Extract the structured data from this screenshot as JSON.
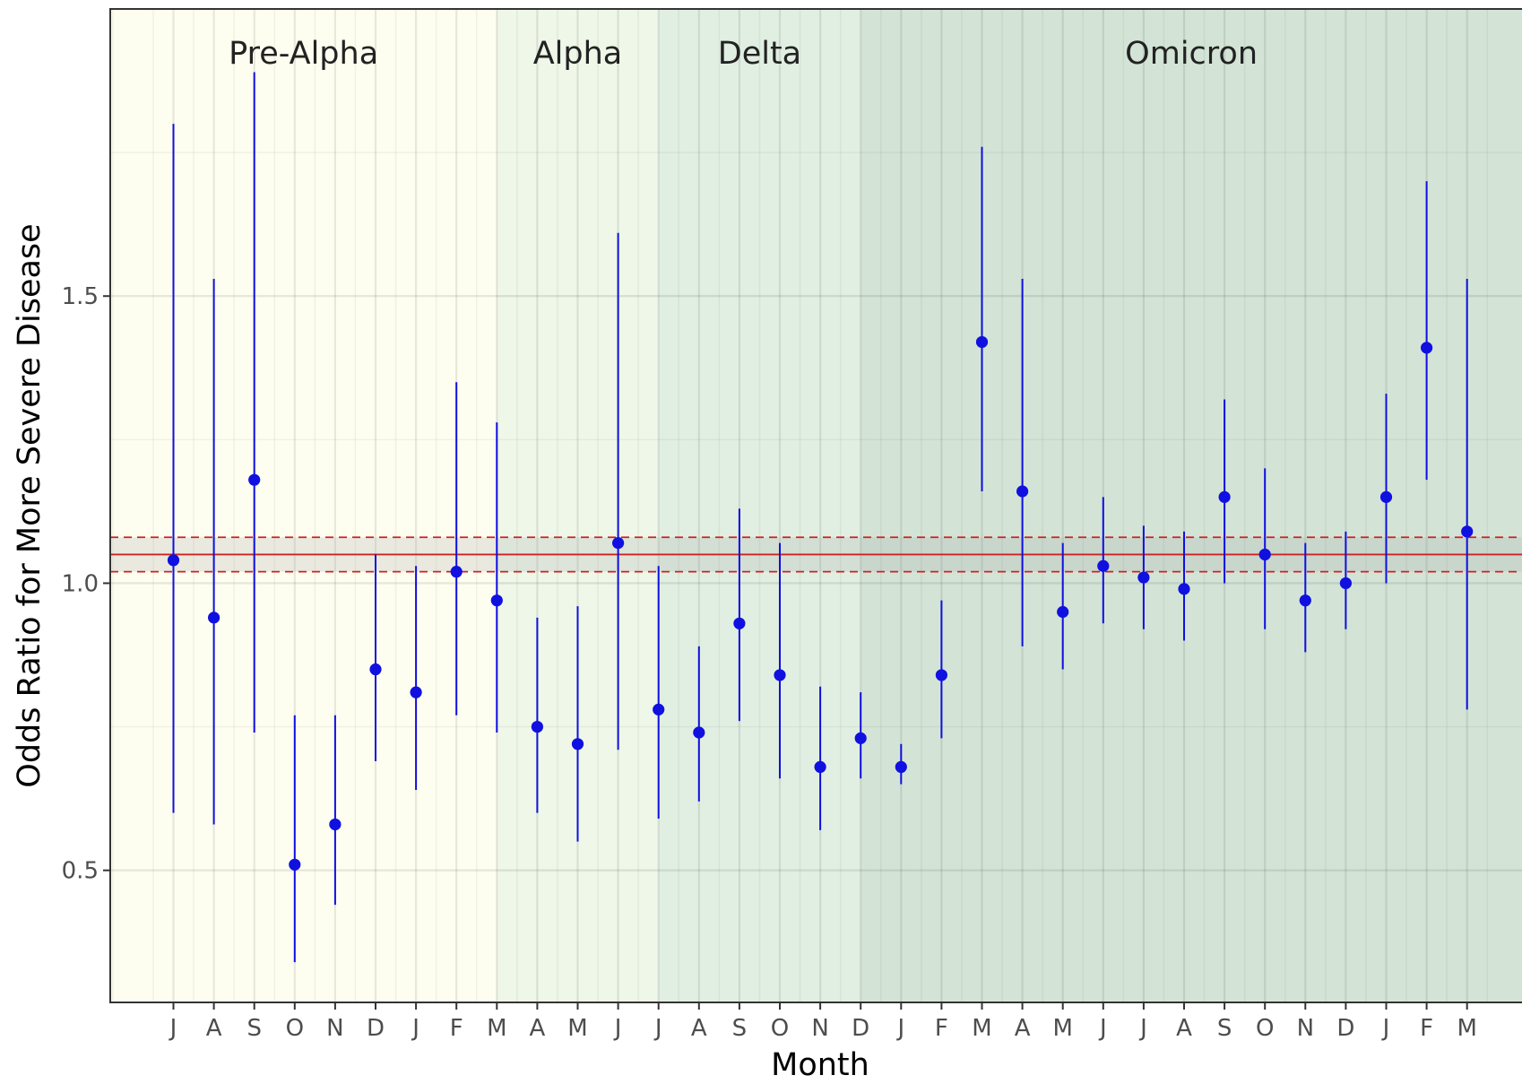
{
  "chart_data": {
    "type": "scatter",
    "subtype": "point-range",
    "title": "",
    "xlabel": "Month",
    "ylabel": "Odds Ratio for More Severe Disease",
    "ylim": [
      0.27,
      2.0
    ],
    "yticks": [
      {
        "value": 0.5,
        "label": "0.5"
      },
      {
        "value": 1.0,
        "label": "1.0"
      },
      {
        "value": 1.5,
        "label": "1.5"
      }
    ],
    "grid": true,
    "x": [
      "J",
      "A",
      "S",
      "O",
      "N",
      "D",
      "J",
      "F",
      "M",
      "A",
      "M",
      "J",
      "J",
      "A",
      "S",
      "O",
      "N",
      "D",
      "J",
      "F",
      "M",
      "A",
      "M",
      "J",
      "J",
      "A",
      "S",
      "O",
      "N",
      "D",
      "J",
      "F",
      "M"
    ],
    "series": [
      {
        "color": "#1010e0",
        "points": [
          {
            "x": "J",
            "y": 1.04,
            "lower": 0.6,
            "upper": 1.8
          },
          {
            "x": "A",
            "y": 0.94,
            "lower": 0.58,
            "upper": 1.53
          },
          {
            "x": "S",
            "y": 1.18,
            "lower": 0.74,
            "upper": 1.89
          },
          {
            "x": "O",
            "y": 0.51,
            "lower": 0.34,
            "upper": 0.77
          },
          {
            "x": "N",
            "y": 0.58,
            "lower": 0.44,
            "upper": 0.77
          },
          {
            "x": "D",
            "y": 0.85,
            "lower": 0.69,
            "upper": 1.05
          },
          {
            "x": "J",
            "y": 0.81,
            "lower": 0.64,
            "upper": 1.03
          },
          {
            "x": "F",
            "y": 1.02,
            "lower": 0.77,
            "upper": 1.35
          },
          {
            "x": "M",
            "y": 0.97,
            "lower": 0.74,
            "upper": 1.28
          },
          {
            "x": "A",
            "y": 0.75,
            "lower": 0.6,
            "upper": 0.94
          },
          {
            "x": "M",
            "y": 0.72,
            "lower": 0.55,
            "upper": 0.96
          },
          {
            "x": "J",
            "y": 1.07,
            "lower": 0.71,
            "upper": 1.61
          },
          {
            "x": "J",
            "y": 0.78,
            "lower": 0.59,
            "upper": 1.03
          },
          {
            "x": "A",
            "y": 0.74,
            "lower": 0.62,
            "upper": 0.89
          },
          {
            "x": "S",
            "y": 0.93,
            "lower": 0.76,
            "upper": 1.13
          },
          {
            "x": "O",
            "y": 0.84,
            "lower": 0.66,
            "upper": 1.07
          },
          {
            "x": "N",
            "y": 0.68,
            "lower": 0.57,
            "upper": 0.82
          },
          {
            "x": "D",
            "y": 0.73,
            "lower": 0.66,
            "upper": 0.81
          },
          {
            "x": "J",
            "y": 0.68,
            "lower": 0.65,
            "upper": 0.72
          },
          {
            "x": "F",
            "y": 0.84,
            "lower": 0.73,
            "upper": 0.97
          },
          {
            "x": "M",
            "y": 1.42,
            "lower": 1.16,
            "upper": 1.76
          },
          {
            "x": "A",
            "y": 1.16,
            "lower": 0.89,
            "upper": 1.53
          },
          {
            "x": "M",
            "y": 0.95,
            "lower": 0.85,
            "upper": 1.07
          },
          {
            "x": "J",
            "y": 1.03,
            "lower": 0.93,
            "upper": 1.15
          },
          {
            "x": "J",
            "y": 1.01,
            "lower": 0.92,
            "upper": 1.1
          },
          {
            "x": "A",
            "y": 0.99,
            "lower": 0.9,
            "upper": 1.09
          },
          {
            "x": "S",
            "y": 1.15,
            "lower": 1.0,
            "upper": 1.32
          },
          {
            "x": "O",
            "y": 1.05,
            "lower": 0.92,
            "upper": 1.2
          },
          {
            "x": "N",
            "y": 0.97,
            "lower": 0.88,
            "upper": 1.07
          },
          {
            "x": "D",
            "y": 1.0,
            "lower": 0.92,
            "upper": 1.09
          },
          {
            "x": "J",
            "y": 1.15,
            "lower": 1.0,
            "upper": 1.33
          },
          {
            "x": "F",
            "y": 1.41,
            "lower": 1.18,
            "upper": 1.7
          },
          {
            "x": "M",
            "y": 1.09,
            "lower": 0.78,
            "upper": 1.53
          }
        ]
      }
    ],
    "reference": {
      "estimate": 1.05,
      "lower": 1.02,
      "upper": 1.08,
      "line_color": "#cc2222",
      "band_color": "#aaaaaa"
    },
    "eras": [
      {
        "label": "Pre-Alpha",
        "start_index": 0,
        "end_index": 8,
        "color": "#fefef0"
      },
      {
        "label": "Alpha",
        "start_index": 8,
        "end_index": 12,
        "color": "#eef7e8"
      },
      {
        "label": "Delta",
        "start_index": 12,
        "end_index": 17,
        "color": "#e1efe2"
      },
      {
        "label": "Omicron",
        "start_index": 17,
        "end_index": 33,
        "color": "#d3e4d7"
      }
    ]
  }
}
